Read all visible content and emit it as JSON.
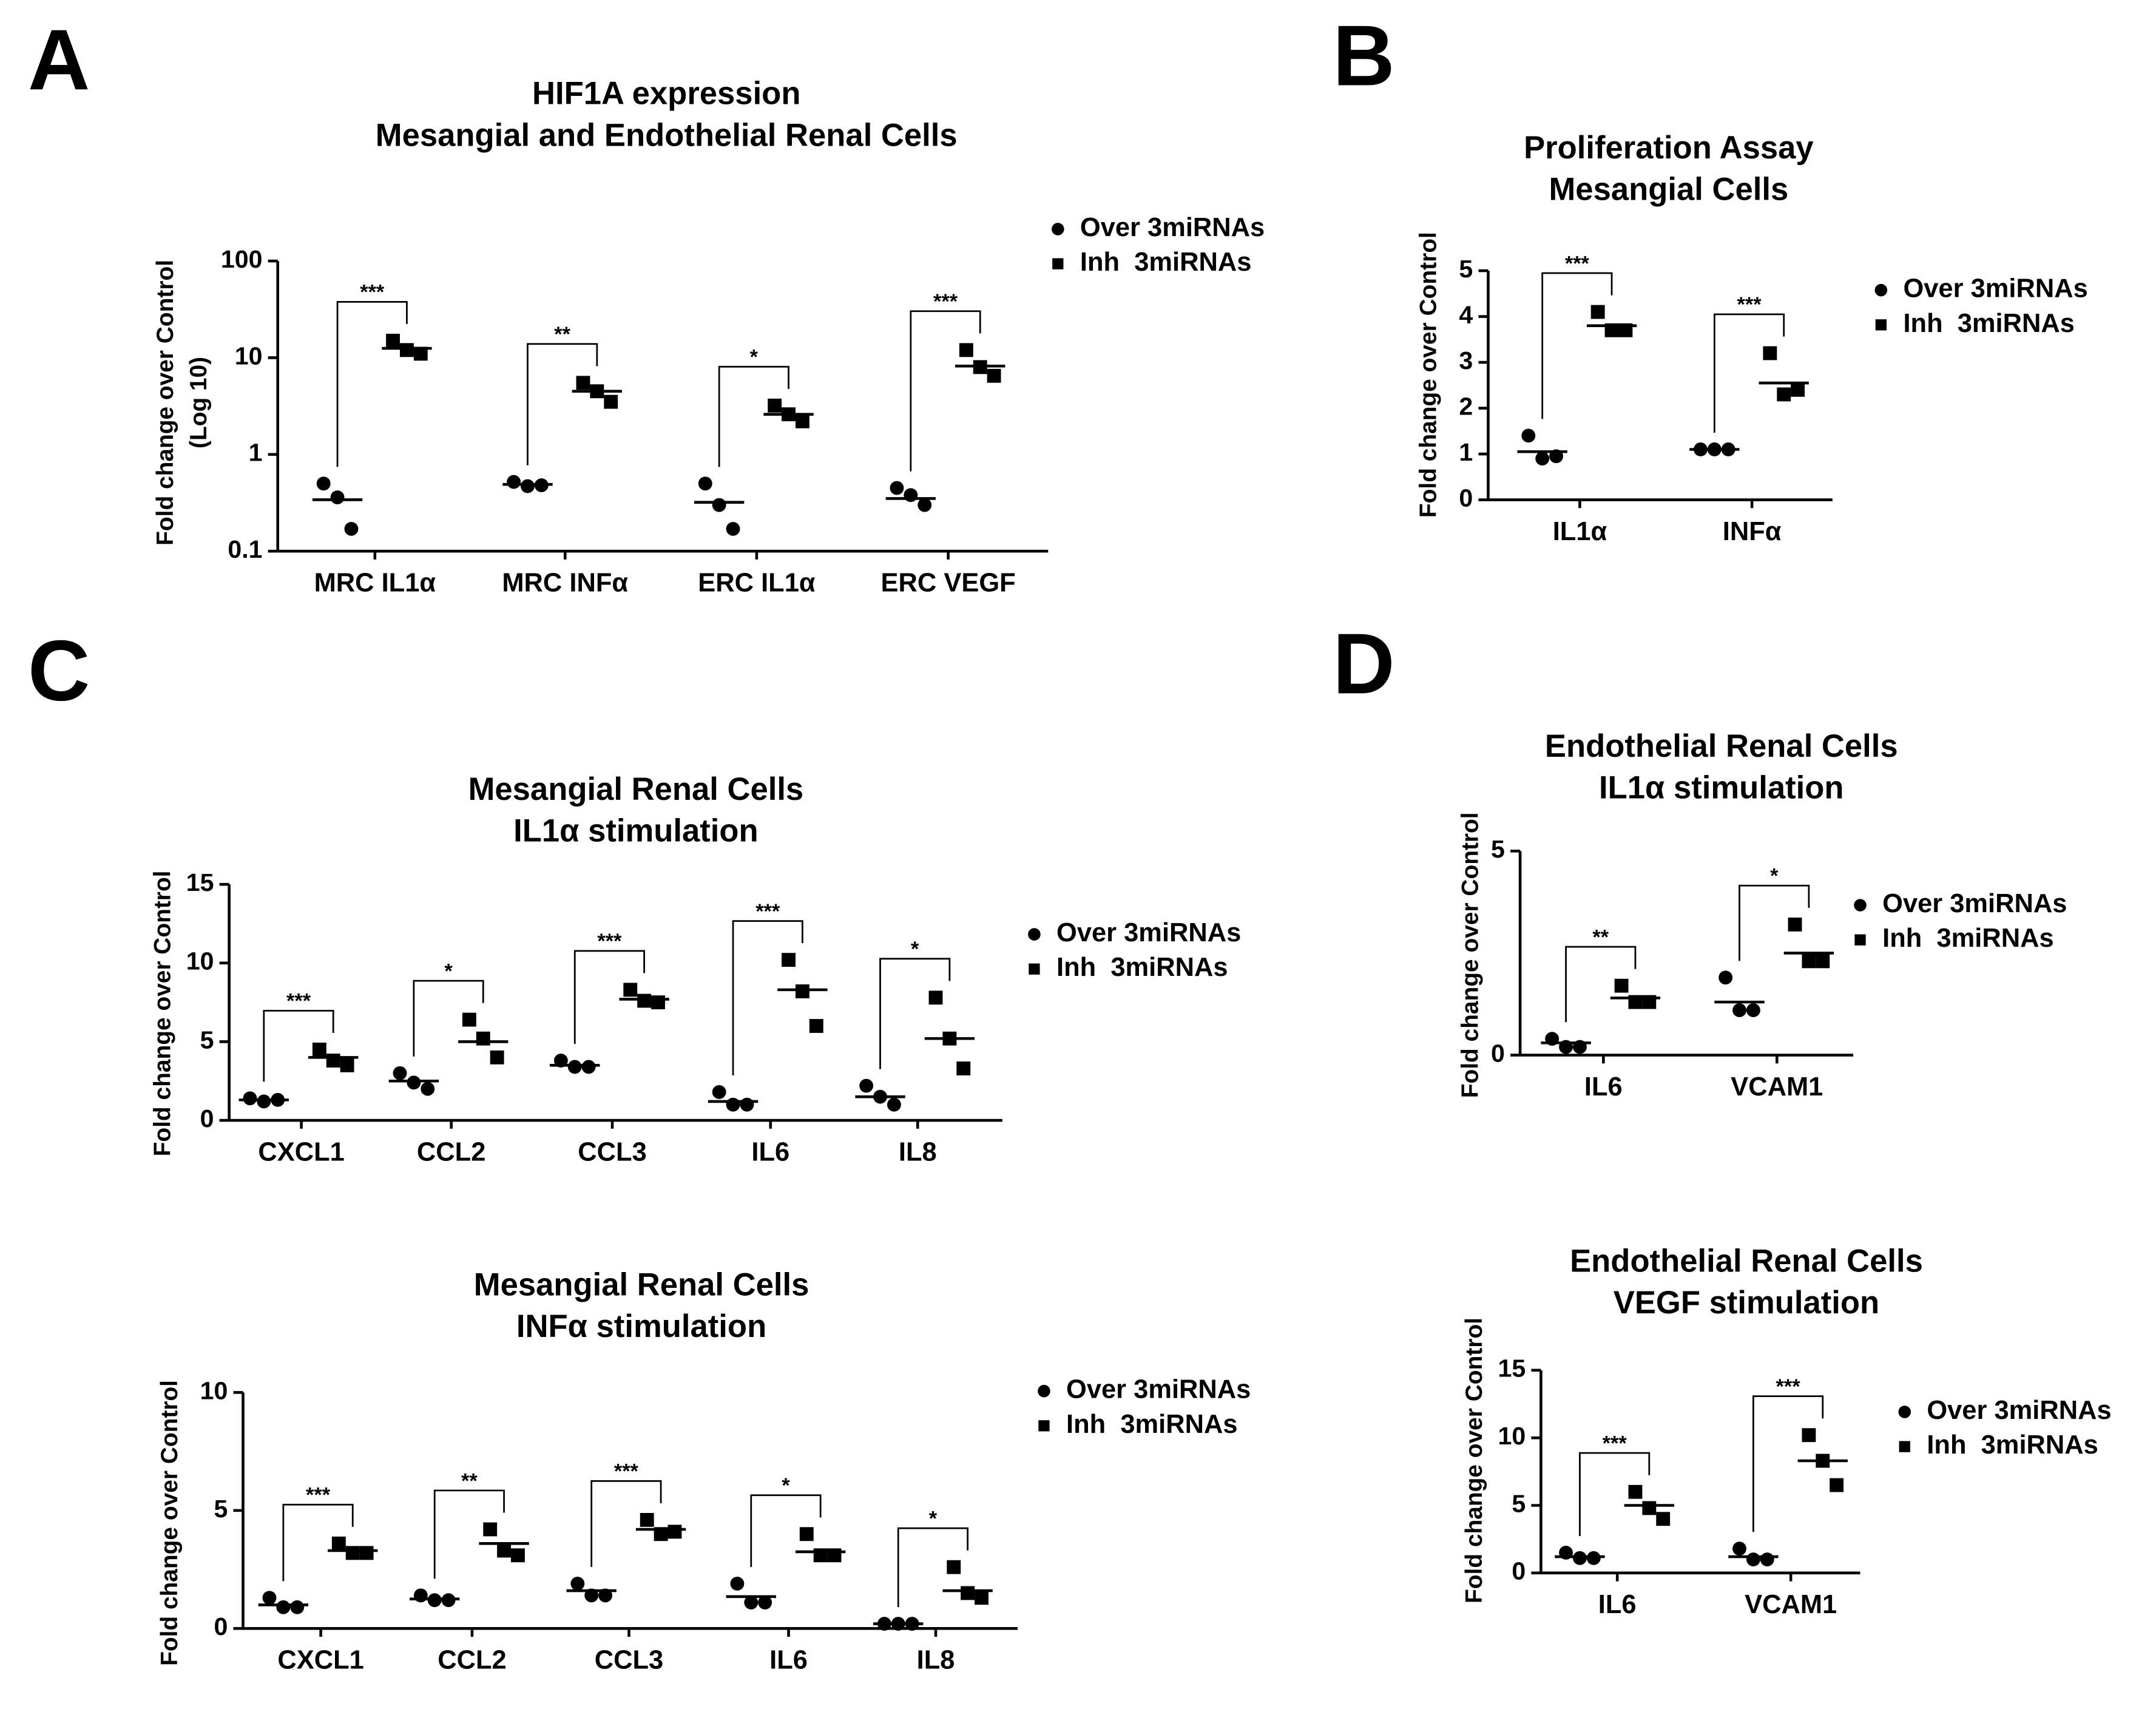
{
  "chart_data": [
    {
      "type": "dotplot",
      "panel": "A",
      "title": [
        "HIF1A expression",
        "Mesangial and Endothelial Renal Cells"
      ],
      "y_label": [
        "Fold change over Control",
        "(Log 10)"
      ],
      "log_scale": true,
      "ylim": [
        0.1,
        100
      ],
      "yticks": [
        0.1,
        1,
        10,
        100
      ],
      "categories": [
        "MRC IL1α",
        "MRC INFα",
        "ERC IL1α",
        "ERC VEGF"
      ],
      "significance": [
        "***",
        "**",
        "*",
        "***"
      ],
      "series": [
        {
          "name": "Over 3miRNAs",
          "marker": "circle",
          "color": "#000000",
          "values": [
            [
              0.5,
              0.36,
              0.17
            ],
            [
              0.52,
              0.47,
              0.48
            ],
            [
              0.5,
              0.3,
              0.17
            ],
            [
              0.45,
              0.38,
              0.3
            ]
          ],
          "means": [
            0.34,
            0.49,
            0.32,
            0.35
          ]
        },
        {
          "name": "Inh  3miRNAs",
          "marker": "square",
          "color": "#000000",
          "values": [
            [
              15,
              12,
              11
            ],
            [
              5.5,
              4.5,
              3.5
            ],
            [
              3.2,
              2.6,
              2.2
            ],
            [
              12,
              8,
              6.5
            ]
          ],
          "means": [
            12.5,
            4.5,
            2.6,
            8.2
          ]
        }
      ]
    },
    {
      "type": "dotplot",
      "panel": "B",
      "title": [
        "Proliferation Assay",
        "Mesangial Cells"
      ],
      "y_label": [
        "Fold change over Control"
      ],
      "log_scale": false,
      "ylim": [
        0,
        5
      ],
      "yticks": [
        0,
        1,
        2,
        3,
        4,
        5
      ],
      "categories": [
        "IL1α",
        "INFα"
      ],
      "significance": [
        "***",
        "***"
      ],
      "series": [
        {
          "name": "Over 3miRNAs",
          "marker": "circle",
          "color": "#000000",
          "values": [
            [
              1.4,
              0.9,
              0.95
            ],
            [
              1.1,
              1.1,
              1.1
            ]
          ],
          "means": [
            1.05,
            1.1
          ]
        },
        {
          "name": "Inh  3miRNAs",
          "marker": "square",
          "color": "#000000",
          "values": [
            [
              4.1,
              3.7,
              3.7
            ],
            [
              3.2,
              2.3,
              2.4
            ]
          ],
          "means": [
            3.8,
            2.55
          ]
        }
      ]
    },
    {
      "type": "dotplot",
      "panel": "C",
      "title": [
        "Mesangial Renal Cells",
        "IL1α stimulation"
      ],
      "y_label": [
        "Fold change over Control"
      ],
      "log_scale": false,
      "ylim": [
        0,
        15
      ],
      "yticks": [
        0,
        5,
        10,
        15
      ],
      "categories": [
        "CXCL1",
        "CCL2",
        "CCL3",
        "IL6",
        "IL8"
      ],
      "significance": [
        "***",
        "*",
        "***",
        "***",
        "*"
      ],
      "series": [
        {
          "name": "Over 3miRNAs",
          "marker": "circle",
          "color": "#000000",
          "values": [
            [
              1.4,
              1.2,
              1.3
            ],
            [
              3.0,
              2.4,
              2.0
            ],
            [
              3.8,
              3.4,
              3.4
            ],
            [
              1.8,
              1.0,
              1.0
            ],
            [
              2.2,
              1.5,
              1.0
            ]
          ],
          "means": [
            1.3,
            2.5,
            3.5,
            1.2,
            1.5
          ]
        },
        {
          "name": "Inh  3miRNAs",
          "marker": "square",
          "color": "#000000",
          "values": [
            [
              4.5,
              3.8,
              3.5
            ],
            [
              6.4,
              5.2,
              4.0
            ],
            [
              8.3,
              7.6,
              7.5
            ],
            [
              10.2,
              8.2,
              6.0
            ],
            [
              7.8,
              5.2,
              3.3
            ]
          ],
          "means": [
            4.0,
            5.0,
            7.7,
            8.3,
            5.2
          ]
        }
      ]
    },
    {
      "type": "dotplot",
      "title": [
        "Mesangial Renal Cells",
        "INFα stimulation"
      ],
      "y_label": [
        "Fold change over Control"
      ],
      "log_scale": false,
      "ylim": [
        0,
        10
      ],
      "yticks": [
        0,
        5,
        10
      ],
      "categories": [
        "CXCL1",
        "CCL2",
        "CCL3",
        "IL6",
        "IL8"
      ],
      "significance": [
        "***",
        "**",
        "***",
        "*",
        "*"
      ],
      "series": [
        {
          "name": "Over 3miRNAs",
          "marker": "circle",
          "color": "#000000",
          "values": [
            [
              1.3,
              0.9,
              0.9
            ],
            [
              1.4,
              1.2,
              1.2
            ],
            [
              1.9,
              1.4,
              1.4
            ],
            [
              1.9,
              1.1,
              1.1
            ],
            [
              0.2,
              0.2,
              0.2
            ]
          ],
          "means": [
            1.0,
            1.25,
            1.6,
            1.35,
            0.2
          ]
        },
        {
          "name": "Inh  3miRNAs",
          "marker": "square",
          "color": "#000000",
          "values": [
            [
              3.6,
              3.2,
              3.2
            ],
            [
              4.2,
              3.3,
              3.1
            ],
            [
              4.6,
              4.0,
              4.1
            ],
            [
              4.0,
              3.1,
              3.1
            ],
            [
              2.6,
              1.5,
              1.3
            ]
          ],
          "means": [
            3.3,
            3.6,
            4.2,
            3.25,
            1.6
          ]
        }
      ]
    },
    {
      "type": "dotplot",
      "panel": "D",
      "title": [
        "Endothelial Renal Cells",
        "IL1α stimulation"
      ],
      "y_label": [
        "Fold change over Control"
      ],
      "log_scale": false,
      "ylim": [
        0,
        5
      ],
      "yticks": [
        0,
        5
      ],
      "categories": [
        "IL6",
        "VCAM1"
      ],
      "significance": [
        "**",
        "*"
      ],
      "series": [
        {
          "name": "Over 3miRNAs",
          "marker": "circle",
          "color": "#000000",
          "values": [
            [
              0.4,
              0.2,
              0.2
            ],
            [
              1.9,
              1.1,
              1.1
            ]
          ],
          "means": [
            0.3,
            1.3
          ]
        },
        {
          "name": "Inh  3miRNAs",
          "marker": "square",
          "color": "#000000",
          "values": [
            [
              1.7,
              1.3,
              1.3
            ],
            [
              3.2,
              2.3,
              2.3
            ]
          ],
          "means": [
            1.4,
            2.5
          ]
        }
      ]
    },
    {
      "type": "dotplot",
      "title": [
        "Endothelial Renal Cells",
        "VEGF stimulation"
      ],
      "y_label": [
        "Fold change over Control"
      ],
      "log_scale": false,
      "ylim": [
        0,
        15
      ],
      "yticks": [
        0,
        5,
        10,
        15
      ],
      "categories": [
        "IL6",
        "VCAM1"
      ],
      "significance": [
        "***",
        "***"
      ],
      "series": [
        {
          "name": "Over 3miRNAs",
          "marker": "circle",
          "color": "#000000",
          "values": [
            [
              1.5,
              1.1,
              1.1
            ],
            [
              1.8,
              1.0,
              1.0
            ]
          ],
          "means": [
            1.2,
            1.2
          ]
        },
        {
          "name": "Inh  3miRNAs",
          "marker": "square",
          "color": "#000000",
          "values": [
            [
              6.0,
              4.8,
              4.0
            ],
            [
              10.2,
              8.3,
              6.5
            ]
          ],
          "means": [
            5.0,
            8.3
          ]
        }
      ]
    }
  ]
}
